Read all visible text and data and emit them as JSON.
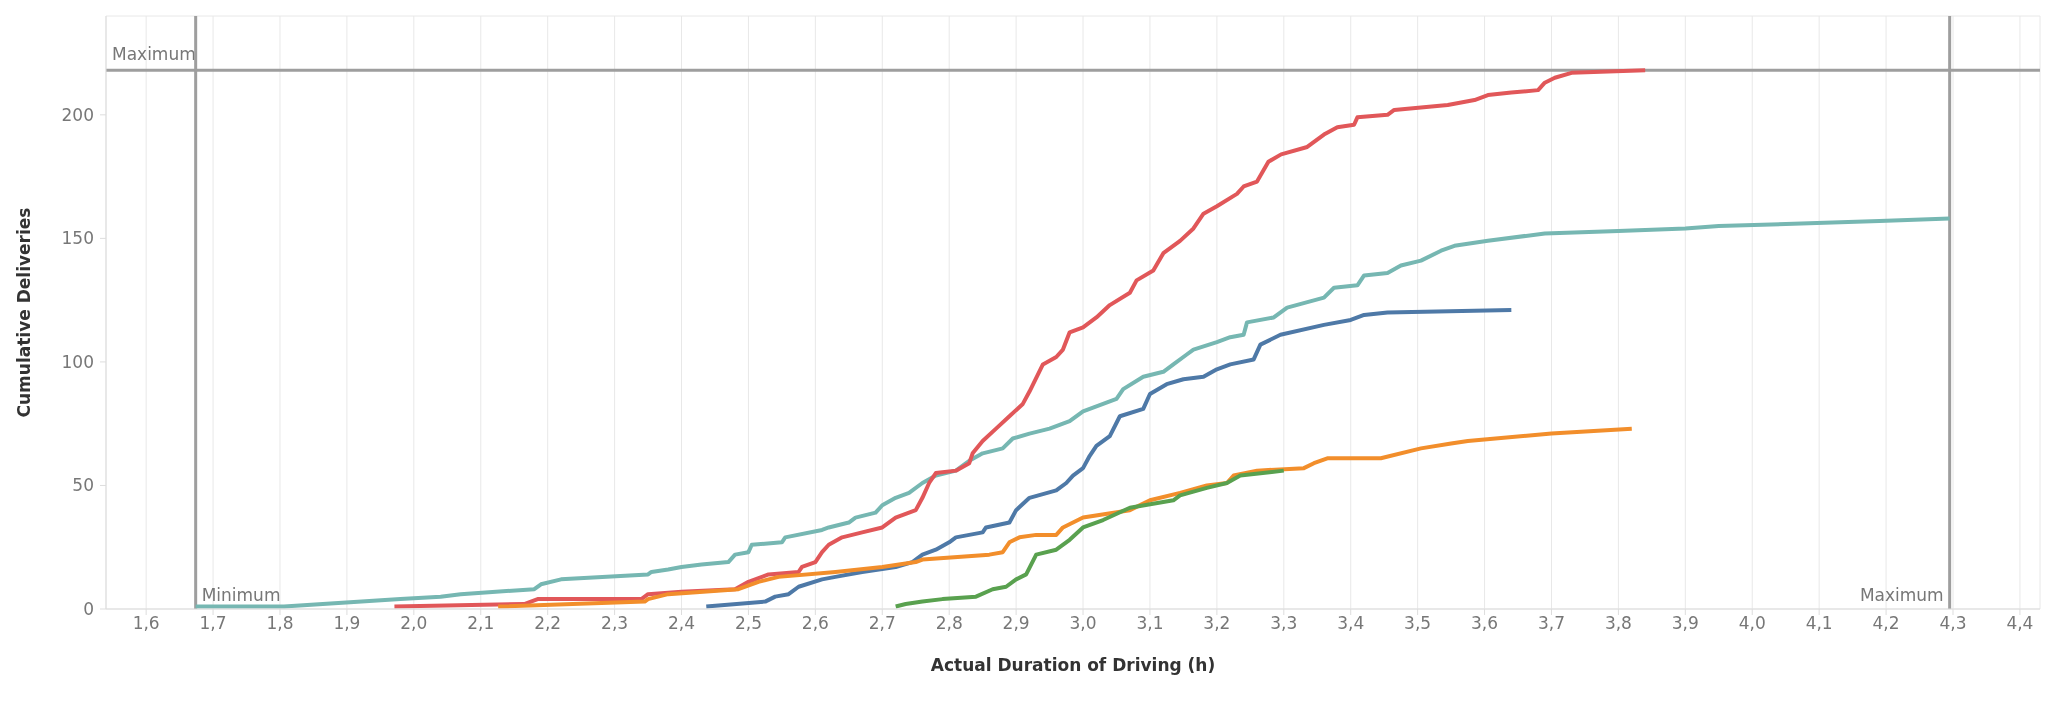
{
  "chart_data": {
    "type": "line",
    "xlabel": "Actual Duration of Driving (h)",
    "ylabel": "Cumulative Deliveries",
    "xlim": [
      1.54,
      4.43
    ],
    "ylim": [
      0,
      240
    ],
    "xticks": [
      {
        "value": 1.6,
        "label": "1,6"
      },
      {
        "value": 1.7,
        "label": "1,7"
      },
      {
        "value": 1.8,
        "label": "1,8"
      },
      {
        "value": 1.9,
        "label": "1,9"
      },
      {
        "value": 2.0,
        "label": "2,0"
      },
      {
        "value": 2.1,
        "label": "2,1"
      },
      {
        "value": 2.2,
        "label": "2,2"
      },
      {
        "value": 2.3,
        "label": "2,3"
      },
      {
        "value": 2.4,
        "label": "2,4"
      },
      {
        "value": 2.5,
        "label": "2,5"
      },
      {
        "value": 2.6,
        "label": "2,6"
      },
      {
        "value": 2.7,
        "label": "2,7"
      },
      {
        "value": 2.8,
        "label": "2,8"
      },
      {
        "value": 2.9,
        "label": "2,9"
      },
      {
        "value": 3.0,
        "label": "3,0"
      },
      {
        "value": 3.1,
        "label": "3,1"
      },
      {
        "value": 3.2,
        "label": "3,2"
      },
      {
        "value": 3.3,
        "label": "3,3"
      },
      {
        "value": 3.4,
        "label": "3,4"
      },
      {
        "value": 3.5,
        "label": "3,5"
      },
      {
        "value": 3.6,
        "label": "3,6"
      },
      {
        "value": 3.7,
        "label": "3,7"
      },
      {
        "value": 3.8,
        "label": "3,8"
      },
      {
        "value": 3.9,
        "label": "3,9"
      },
      {
        "value": 4.0,
        "label": "4,0"
      },
      {
        "value": 4.1,
        "label": "4,1"
      },
      {
        "value": 4.2,
        "label": "4,2"
      },
      {
        "value": 4.3,
        "label": "4,3"
      },
      {
        "value": 4.4,
        "label": "4,4"
      }
    ],
    "yticks": [
      0,
      50,
      100,
      150,
      200
    ],
    "grid": true,
    "marker": "none",
    "line_style": "solid",
    "ref_lines": [
      {
        "axis": "y",
        "value": 218,
        "label": "Maximum",
        "color": "#9e9e9e"
      },
      {
        "axis": "x",
        "value": 1.674,
        "label": "Minimum",
        "color": "#9e9e9e"
      },
      {
        "axis": "x",
        "value": 4.295,
        "label": "Maximum",
        "color": "#9e9e9e"
      }
    ],
    "series": [
      {
        "color": "#76b7b2",
        "x": [
          1.674,
          1.806,
          1.98,
          2.04,
          2.07,
          2.18,
          2.19,
          2.22,
          2.35,
          2.355,
          2.38,
          2.4,
          2.43,
          2.47,
          2.48,
          2.5,
          2.505,
          2.55,
          2.555,
          2.61,
          2.62,
          2.65,
          2.66,
          2.69,
          2.7,
          2.72,
          2.74,
          2.76,
          2.78,
          2.81,
          2.83,
          2.85,
          2.88,
          2.895,
          2.92,
          2.95,
          2.98,
          3.0,
          3.03,
          3.05,
          3.06,
          3.09,
          3.12,
          3.135,
          3.155,
          3.165,
          3.2,
          3.22,
          3.24,
          3.245,
          3.285,
          3.305,
          3.36,
          3.375,
          3.41,
          3.42,
          3.455,
          3.475,
          3.505,
          3.535,
          3.555,
          3.605,
          3.69,
          3.8,
          3.9,
          3.95,
          4.19,
          4.295
        ],
        "values": [
          1,
          1,
          4,
          5,
          6,
          8,
          10,
          12,
          14,
          15,
          16,
          17,
          18,
          19,
          22,
          23,
          26,
          27,
          29,
          32,
          33,
          35,
          37,
          39,
          42,
          45,
          47,
          51,
          54,
          56,
          60,
          63,
          65,
          69,
          71,
          73,
          76,
          80,
          83,
          85,
          89,
          94,
          96,
          99,
          103,
          105,
          108,
          110,
          111,
          116,
          118,
          122,
          126,
          130,
          131,
          135,
          136,
          139,
          141,
          145,
          147,
          149,
          152,
          153,
          154,
          155,
          157,
          158
        ]
      },
      {
        "color": "#e15759",
        "x": [
          1.971,
          2.165,
          2.185,
          2.34,
          2.35,
          2.4,
          2.48,
          2.5,
          2.53,
          2.575,
          2.58,
          2.6,
          2.61,
          2.62,
          2.64,
          2.67,
          2.7,
          2.72,
          2.75,
          2.76,
          2.77,
          2.78,
          2.81,
          2.83,
          2.835,
          2.85,
          2.87,
          2.89,
          2.91,
          2.92,
          2.94,
          2.96,
          2.97,
          2.98,
          3.0,
          3.02,
          3.04,
          3.07,
          3.08,
          3.105,
          3.12,
          3.145,
          3.165,
          3.18,
          3.2,
          3.23,
          3.24,
          3.26,
          3.277,
          3.296,
          3.335,
          3.36,
          3.38,
          3.405,
          3.41,
          3.455,
          3.465,
          3.505,
          3.545,
          3.585,
          3.605,
          3.64,
          3.68,
          3.69,
          3.705,
          3.73,
          3.84
        ],
        "values": [
          1,
          2,
          4,
          4,
          6,
          7,
          8,
          11,
          14,
          15,
          17,
          19,
          23,
          26,
          29,
          31,
          33,
          37,
          40,
          45,
          51,
          55,
          56,
          59,
          63,
          68,
          73,
          78,
          83,
          88,
          99,
          102,
          105,
          112,
          114,
          118,
          123,
          128,
          133,
          137,
          144,
          149,
          154,
          160,
          163,
          168,
          171,
          173,
          181,
          184,
          187,
          192,
          195,
          196,
          199,
          200,
          202,
          203,
          204,
          206,
          208,
          209,
          210,
          213,
          215,
          217,
          218
        ]
      },
      {
        "color": "#4e79a7",
        "x": [
          2.437,
          2.525,
          2.54,
          2.56,
          2.575,
          2.61,
          2.63,
          2.67,
          2.72,
          2.745,
          2.76,
          2.78,
          2.8,
          2.81,
          2.85,
          2.855,
          2.89,
          2.9,
          2.92,
          2.96,
          2.975,
          2.985,
          3.0,
          3.01,
          3.02,
          3.04,
          3.055,
          3.09,
          3.1,
          3.125,
          3.15,
          3.18,
          3.2,
          3.22,
          3.255,
          3.265,
          3.295,
          3.36,
          3.4,
          3.42,
          3.455,
          3.64
        ],
        "values": [
          1,
          3,
          5,
          6,
          9,
          12,
          13,
          15,
          17,
          19,
          22,
          24,
          27,
          29,
          31,
          33,
          35,
          40,
          45,
          48,
          51,
          54,
          57,
          62,
          66,
          70,
          78,
          81,
          87,
          91,
          93,
          94,
          97,
          99,
          101,
          107,
          111,
          115,
          117,
          119,
          120,
          121
        ]
      },
      {
        "color": "#f28e2b",
        "x": [
          2.126,
          2.345,
          2.35,
          2.38,
          2.485,
          2.515,
          2.545,
          2.63,
          2.7,
          2.75,
          2.76,
          2.86,
          2.88,
          2.89,
          2.905,
          2.93,
          2.96,
          2.97,
          3.0,
          3.07,
          3.1,
          3.145,
          3.185,
          3.215,
          3.225,
          3.26,
          3.33,
          3.345,
          3.365,
          3.445,
          3.505,
          3.55,
          3.575,
          3.7,
          3.82
        ],
        "values": [
          1,
          3,
          4,
          6,
          8,
          11,
          13,
          15,
          17,
          19,
          20,
          22,
          23,
          27,
          29,
          30,
          30,
          33,
          37,
          40,
          44,
          47,
          50,
          51,
          54,
          56,
          57,
          59,
          61,
          61,
          65,
          67,
          68,
          71,
          73
        ]
      },
      {
        "color": "#59a14f",
        "x": [
          2.72,
          2.735,
          2.76,
          2.79,
          2.84,
          2.865,
          2.885,
          2.9,
          2.915,
          2.93,
          2.96,
          2.98,
          3.0,
          3.03,
          3.07,
          3.135,
          3.145,
          3.185,
          3.215,
          3.235,
          3.3
        ],
        "values": [
          1,
          2,
          3,
          4,
          5,
          8,
          9,
          12,
          14,
          22,
          24,
          28,
          33,
          36,
          41,
          44,
          46,
          49,
          51,
          54,
          56
        ]
      }
    ]
  }
}
